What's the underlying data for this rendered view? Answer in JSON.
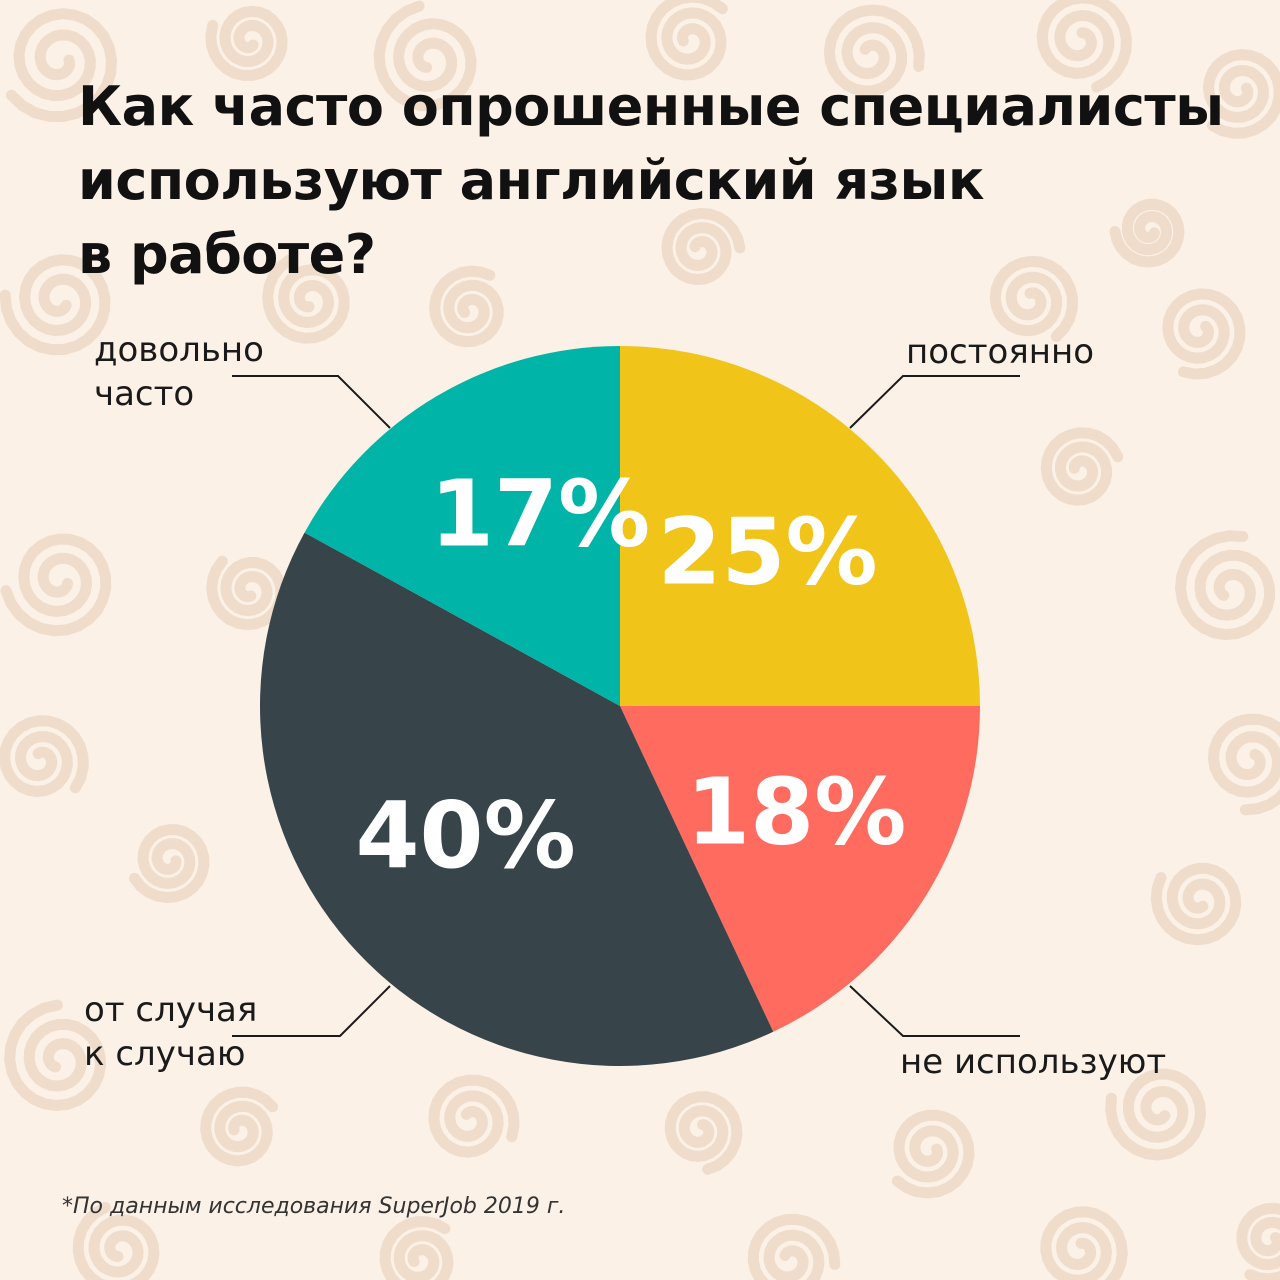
{
  "title_lines": [
    "Как часто опрошенные специалисты",
    "используют английский язык",
    "в работе?"
  ],
  "footnote": "*По данным исследования SuperJob 2019 г.",
  "category_labels": {
    "postoyanno": [
      "постоянно"
    ],
    "ne_ispolzuyut": [
      "не используют"
    ],
    "ot_sluchaya": [
      "от случая",
      "к случаю"
    ],
    "dovolno_chasto": [
      "довольно",
      "часто"
    ]
  },
  "chart_data": {
    "type": "pie",
    "categories": [
      "постоянно",
      "не используют",
      "от случая к случаю",
      "довольно часто"
    ],
    "values": [
      25,
      18,
      40,
      17
    ],
    "value_labels": [
      "25%",
      "18%",
      "40%",
      "17%"
    ],
    "colors": [
      "#f0c419",
      "#ff6b5e",
      "#37454b",
      "#00b5a8"
    ],
    "start": "12 o'clock, clockwise"
  }
}
